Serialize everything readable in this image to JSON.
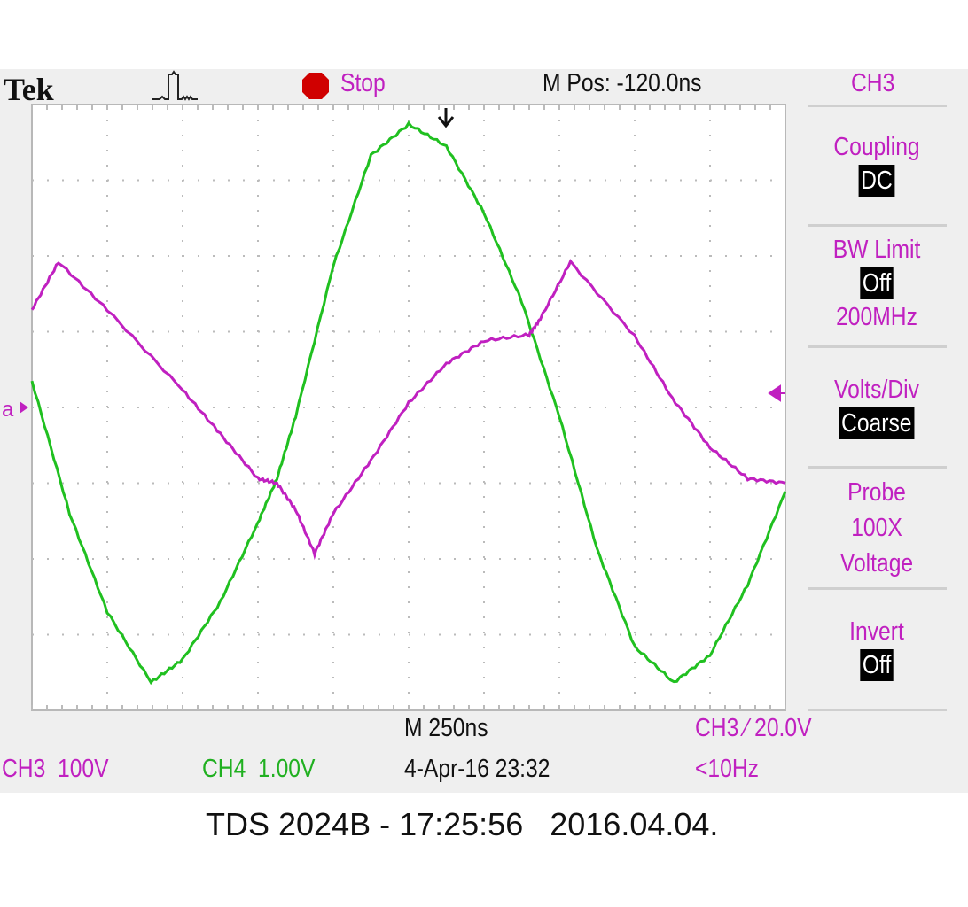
{
  "header": {
    "brand": "Tek",
    "trigger_status": "Stop",
    "m_pos": "M Pos: -120.0ns",
    "menu_title": "CH3"
  },
  "menu": [
    {
      "label": "Coupling",
      "value": "DC"
    },
    {
      "label": "BW Limit",
      "value": "Off",
      "extra": "200MHz"
    },
    {
      "label": "Volts/Div",
      "value": "Coarse"
    },
    {
      "label": "Probe",
      "extra": "100X",
      "extra2": "Voltage"
    },
    {
      "label": "Invert",
      "value": "Off"
    }
  ],
  "footer": {
    "timebase": "M 250ns",
    "trigger": "CH3 ⁄ 20.0V",
    "ch3_scale": "CH3  100V",
    "ch4_scale": "CH4  1.00V",
    "datetime": "4-Apr-16 23:32",
    "frequency": "<10Hz"
  },
  "caption": "TDS 2024B - 17:25:56   2016.04.04.",
  "colors": {
    "ch3": "#c020c0",
    "ch4": "#20c020",
    "grid": "#b0b0b0",
    "screen": "#efefef"
  },
  "chart_data": {
    "type": "line",
    "xlabel": "",
    "ylabel": "",
    "xlim_ns": [
      -1250,
      1250
    ],
    "divisions": {
      "x": 10,
      "y": 8
    },
    "grid": true,
    "series": [
      {
        "name": "CH4",
        "volts_per_div": 1.0,
        "x_ns": [
          -1250,
          -1125,
          -1000,
          -855,
          -750,
          -625,
          -500,
          -437,
          -375,
          -250,
          -125,
          0,
          125,
          250,
          375,
          500,
          625,
          750,
          880,
          1000,
          1125,
          1250
        ],
        "y_v": [
          0.35,
          -1.4,
          -2.7,
          -3.63,
          -3.33,
          -2.57,
          -1.52,
          -0.94,
          -0.12,
          1.87,
          3.33,
          3.74,
          3.45,
          2.57,
          1.4,
          -0.12,
          -1.87,
          -3.16,
          -3.63,
          -3.27,
          -2.34,
          -1.11
        ]
      },
      {
        "name": "CH3",
        "volts_per_div": 100,
        "x_ns": [
          -1250,
          -1162,
          -1000,
          -750,
          -625,
          -500,
          -437,
          -375,
          -312,
          -250,
          -125,
          0,
          125,
          250,
          400,
          437,
          537,
          750,
          875,
          1000,
          1125,
          1250
        ],
        "y_v": [
          129,
          192,
          129,
          23,
          -35,
          -94,
          -100,
          -135,
          -193,
          -140,
          -70,
          6,
          58,
          88,
          96,
          117,
          192,
          94,
          12,
          -53,
          -94,
          -100
        ]
      }
    ]
  }
}
